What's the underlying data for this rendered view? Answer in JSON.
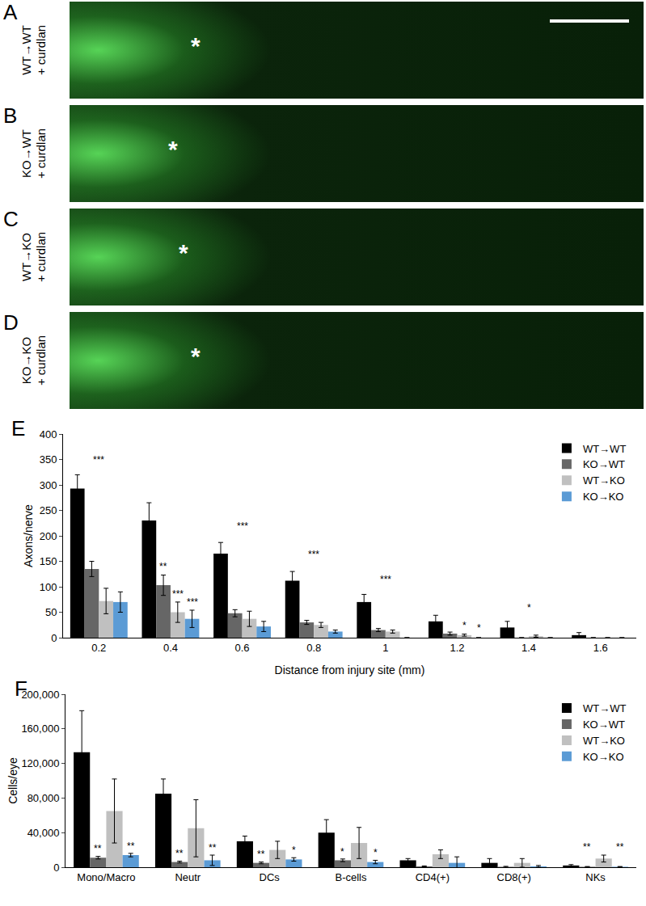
{
  "image_panels": [
    {
      "letter": "A",
      "label": "WT→WT",
      "sublabel": "+ curdlan",
      "marker": "*"
    },
    {
      "letter": "B",
      "label": "KO→WT",
      "sublabel": "+ curdlan",
      "marker": "*"
    },
    {
      "letter": "C",
      "label": "WT→KO",
      "sublabel": "+ curdlan",
      "marker": "*"
    },
    {
      "letter": "D",
      "label": "KO→KO",
      "sublabel": "+ curdlan",
      "marker": "*"
    }
  ],
  "chart_data": [
    {
      "panel": "E",
      "type": "bar",
      "x_label": "Distance from injury site (mm)",
      "y_label": "Axons/nerve",
      "categories": [
        "0.2",
        "0.4",
        "0.6",
        "0.8",
        "1",
        "1.2",
        "1.4",
        "1.6"
      ],
      "series": [
        {
          "name": "WT→WT",
          "color": "#000000",
          "values": [
            293,
            230,
            165,
            112,
            70,
            32,
            20,
            5
          ],
          "errors": [
            27,
            35,
            22,
            18,
            15,
            12,
            12,
            5
          ]
        },
        {
          "name": "KO→WT",
          "color": "#666666",
          "values": [
            135,
            103,
            48,
            30,
            15,
            8,
            0,
            0
          ],
          "errors": [
            15,
            20,
            7,
            4,
            3,
            3,
            0,
            0
          ]
        },
        {
          "name": "WT→KO",
          "color": "#c0c0c0",
          "values": [
            72,
            50,
            37,
            25,
            12,
            5,
            3,
            0
          ],
          "errors": [
            25,
            20,
            15,
            5,
            3,
            2,
            2,
            0
          ]
        },
        {
          "name": "KO→KO",
          "color": "#5b9bd5",
          "values": [
            70,
            37,
            22,
            12,
            0,
            0,
            0,
            0
          ],
          "errors": [
            20,
            17,
            10,
            3,
            0,
            0,
            0,
            0
          ]
        }
      ],
      "ylim": [
        0,
        400
      ],
      "yticks": [
        0,
        50,
        100,
        150,
        200,
        250,
        300,
        350,
        400
      ],
      "legend": "top right",
      "annotations": [
        {
          "category": "0.2",
          "series": null,
          "y": 335,
          "text": "***"
        },
        {
          "category": "0.4",
          "series": "KO→WT",
          "y": 125,
          "text": "**"
        },
        {
          "category": "0.4",
          "series": "WT→KO",
          "y": 72,
          "text": "***"
        },
        {
          "category": "0.4",
          "series": "KO→KO",
          "y": 56,
          "text": "***"
        },
        {
          "category": "0.6",
          "series": null,
          "y": 205,
          "text": "***"
        },
        {
          "category": "0.8",
          "series": null,
          "y": 150,
          "text": "***"
        },
        {
          "category": "1",
          "series": null,
          "y": 100,
          "text": "***"
        },
        {
          "category": "1.2",
          "series": "WT→KO",
          "y": 9,
          "text": "*"
        },
        {
          "category": "1.2",
          "series": "KO→KO",
          "y": 4,
          "text": "*"
        },
        {
          "category": "1.4",
          "series": null,
          "y": 45,
          "text": "*"
        }
      ]
    },
    {
      "panel": "F",
      "type": "bar",
      "y_label": "Cells/eye",
      "categories": [
        "Mono/Macro",
        "Neutr",
        "DCs",
        "B-cells",
        "CD4(+)",
        "CD8(+)",
        "NKs"
      ],
      "series": [
        {
          "name": "WT→WT",
          "color": "#000000",
          "values": [
            133000,
            85000,
            30000,
            40000,
            8000,
            5000,
            2000
          ],
          "errors": [
            48000,
            17000,
            6000,
            15000,
            2000,
            5000,
            1000
          ]
        },
        {
          "name": "KO→WT",
          "color": "#666666",
          "values": [
            11000,
            6000,
            5000,
            8000,
            1000,
            500,
            500
          ],
          "errors": [
            1500,
            1000,
            1000,
            1500,
            500,
            500,
            300
          ]
        },
        {
          "name": "WT→KO",
          "color": "#c0c0c0",
          "values": [
            65000,
            45000,
            20000,
            28000,
            15000,
            5000,
            10000
          ],
          "errors": [
            37000,
            33000,
            10000,
            18000,
            5000,
            5000,
            4000
          ]
        },
        {
          "name": "KO→KO",
          "color": "#5b9bd5",
          "values": [
            14000,
            8000,
            9000,
            6000,
            5000,
            1000,
            500
          ],
          "errors": [
            2000,
            6000,
            2000,
            2000,
            7000,
            1000,
            300
          ]
        }
      ],
      "ylim": [
        0,
        200000
      ],
      "yticks": [
        0,
        {
          "value": 40000,
          "label": "40,000"
        },
        {
          "value": 80000,
          "label": "80,000"
        },
        {
          "value": 120000,
          "label": "120,000"
        },
        {
          "value": 160000,
          "label": "160,000"
        },
        {
          "value": 200000,
          "label": "200,000"
        }
      ],
      "legend": "top right",
      "annotations": [
        {
          "category": "Mono/Macro",
          "series": "KO→WT",
          "y": 13000,
          "text": "**"
        },
        {
          "category": "Mono/Macro",
          "series": "KO→KO",
          "y": 16000,
          "text": "**"
        },
        {
          "category": "Neutr",
          "series": "KO→WT",
          "y": 7500,
          "text": "**"
        },
        {
          "category": "Neutr",
          "series": "KO→KO",
          "y": 14000,
          "text": "**"
        },
        {
          "category": "DCs",
          "series": "KO→WT",
          "y": 6500,
          "text": "**"
        },
        {
          "category": "DCs",
          "series": "KO→KO",
          "y": 11000,
          "text": "*"
        },
        {
          "category": "B-cells",
          "series": "KO→WT",
          "y": 9500,
          "text": "*"
        },
        {
          "category": "B-cells",
          "series": "KO→KO",
          "y": 8000,
          "text": "*"
        },
        {
          "category": "NKs",
          "series": "KO→WT",
          "y": 15000,
          "text": "**"
        },
        {
          "category": "NKs",
          "series": "KO→KO",
          "y": 15000,
          "text": "**"
        }
      ]
    }
  ]
}
